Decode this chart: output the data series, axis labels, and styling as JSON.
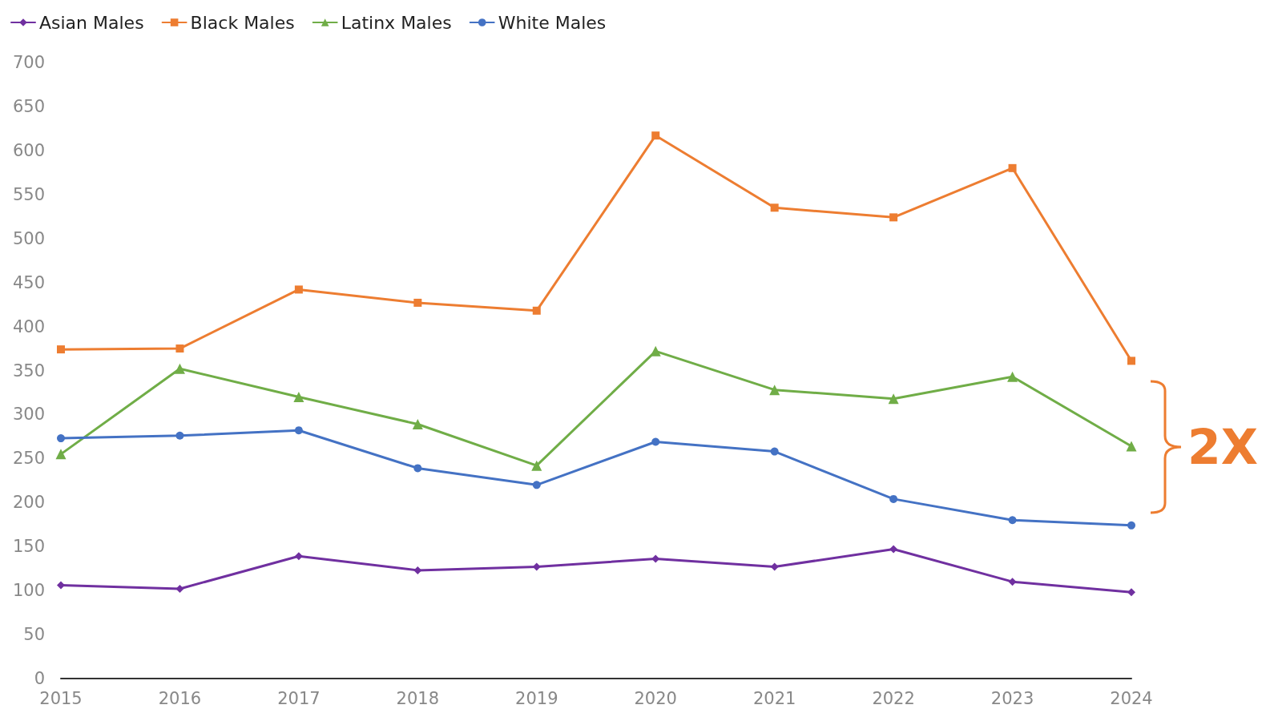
{
  "chart_data": {
    "type": "line",
    "categories": [
      "2015",
      "2016",
      "2017",
      "2018",
      "2019",
      "2020",
      "2021",
      "2022",
      "2023",
      "2024"
    ],
    "series": [
      {
        "name": "Asian Males",
        "color": "#7030a0",
        "marker": "diamond",
        "values": [
          106,
          102,
          139,
          123,
          127,
          136,
          127,
          147,
          110,
          98
        ]
      },
      {
        "name": "Black Males",
        "color": "#ed7d31",
        "marker": "square",
        "values": [
          374,
          375,
          442,
          427,
          418,
          617,
          535,
          524,
          580,
          361
        ]
      },
      {
        "name": "Latinx Males",
        "color": "#70ad47",
        "marker": "triangle",
        "values": [
          255,
          352,
          320,
          289,
          242,
          372,
          328,
          318,
          343,
          264
        ]
      },
      {
        "name": "White Males",
        "color": "#4472c4",
        "marker": "circle",
        "values": [
          273,
          276,
          282,
          239,
          220,
          269,
          258,
          204,
          180,
          174
        ]
      }
    ],
    "ylim": [
      0,
      700
    ],
    "yticks": [
      0,
      50,
      100,
      150,
      200,
      250,
      300,
      350,
      400,
      450,
      500,
      550,
      600,
      650,
      700
    ],
    "grid": false,
    "legend": "top left",
    "line_style": "solid",
    "annotations": [
      {
        "text": "2X",
        "x": "2024",
        "y": 263
      }
    ]
  }
}
